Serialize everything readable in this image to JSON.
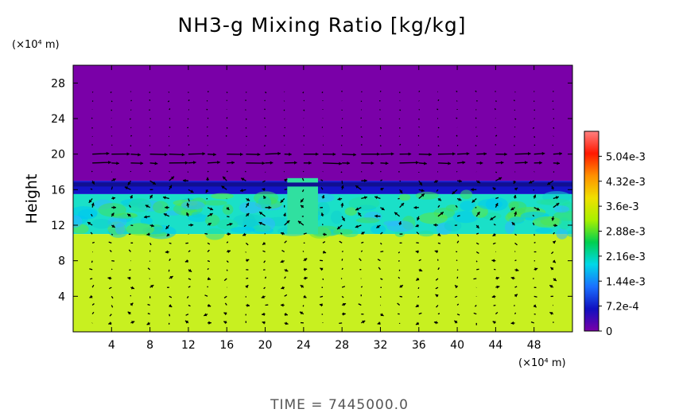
{
  "chart_data": {
    "type": "heatmap",
    "title": "NH3-g Mixing Ratio [kg/kg]",
    "ylabel": "Height",
    "y_unit": "(×10⁴ m)",
    "x_unit": "(×10⁴ m)",
    "footer": "TIME = 7445000.0",
    "xlim": [
      0,
      52
    ],
    "ylim": [
      0,
      30
    ],
    "x_ticks": [
      "4",
      "8",
      "12",
      "16",
      "20",
      "24",
      "28",
      "32",
      "36",
      "40",
      "44",
      "48"
    ],
    "y_ticks": [
      "4",
      "8",
      "12",
      "16",
      "20",
      "24",
      "28"
    ],
    "colorbar": {
      "range": [
        0,
        0.00576
      ],
      "labels": [
        "0",
        "7.2e-4",
        "1.44e-3",
        "2.16e-3",
        "2.88e-3",
        "3.6e-3",
        "4.32e-3",
        "5.04e-3"
      ],
      "colors": [
        "#7a00a8",
        "#1010c0",
        "#1a70ff",
        "#00d8e8",
        "#00d050",
        "#a8f000",
        "#f0e000",
        "#ff9000",
        "#ff1800",
        "#ff8080"
      ]
    },
    "regions": [
      {
        "name": "upper layer",
        "y_range": [
          17,
          30
        ],
        "value": 0,
        "color": "#7a00a8"
      },
      {
        "name": "transition band",
        "y_range": [
          15.5,
          17
        ],
        "value": 0.00072,
        "color": "#1414c8"
      },
      {
        "name": "mixed cloud layer",
        "y_range": [
          11,
          15.5
        ],
        "value": 0.0024,
        "color": "#1ae0c8"
      },
      {
        "name": "lower layer",
        "y_range": [
          0,
          11
        ],
        "value": 0.0034,
        "color": "#c8f020"
      }
    ],
    "wind_vectors": "velocity field arrows overlaid on grid"
  }
}
